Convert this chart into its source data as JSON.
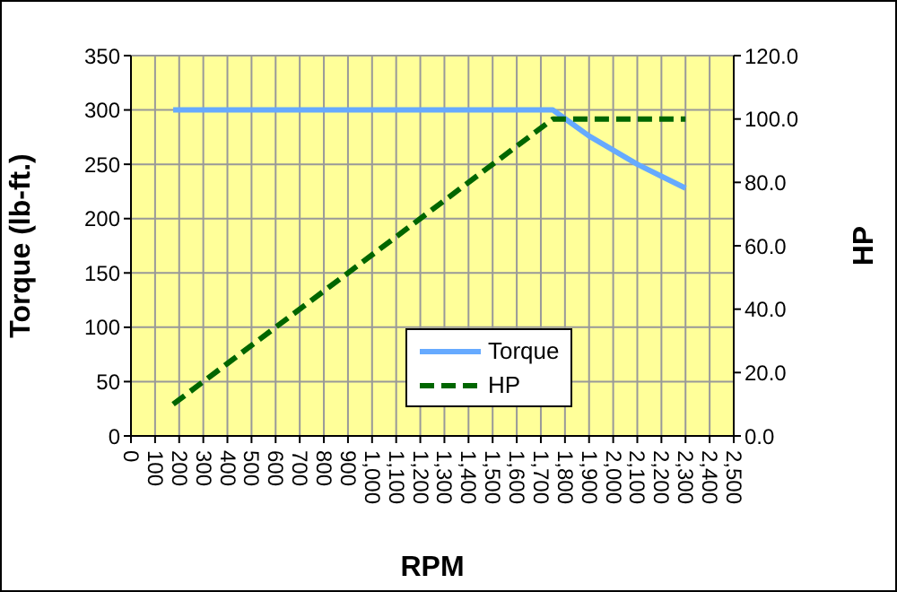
{
  "chart_data": {
    "type": "line",
    "xlabel": "RPM",
    "ylabel": "Torque (lb-ft.)",
    "y2label": "HP",
    "x": [
      175,
      1750,
      1800,
      1900,
      2000,
      2100,
      2200,
      2300
    ],
    "series": [
      {
        "name": "Torque",
        "color": "#66aaff",
        "line_style": "solid",
        "values": [
          300,
          300,
          292,
          276,
          263,
          250,
          239,
          228
        ]
      },
      {
        "name": "HP",
        "color": "#006600",
        "line_style": "dashed",
        "axis": "y2",
        "values": [
          10,
          100,
          100,
          100,
          100,
          100,
          100,
          100
        ]
      }
    ],
    "xlim": [
      0,
      2500
    ],
    "xticks": [
      0,
      100,
      200,
      300,
      400,
      500,
      600,
      700,
      800,
      900,
      {
        "value": 1000,
        "label": "1,000"
      },
      {
        "value": 1100,
        "label": "1,100"
      },
      {
        "value": 1200,
        "label": "1,200"
      },
      {
        "value": 1300,
        "label": "1,300"
      },
      {
        "value": 1400,
        "label": "1,400"
      },
      {
        "value": 1500,
        "label": "1,500"
      },
      {
        "value": 1600,
        "label": "1,600"
      },
      {
        "value": 1700,
        "label": "1,700"
      },
      {
        "value": 1800,
        "label": "1,800"
      },
      {
        "value": 1900,
        "label": "1,900"
      },
      {
        "value": 2000,
        "label": "2,000"
      },
      {
        "value": 2100,
        "label": "2,100"
      },
      {
        "value": 2200,
        "label": "2,200"
      },
      {
        "value": 2300,
        "label": "2,300"
      },
      {
        "value": 2400,
        "label": "2,400"
      },
      {
        "value": 2500,
        "label": "2,500"
      }
    ],
    "ylim": [
      0,
      350
    ],
    "yticks": [
      0,
      50,
      100,
      150,
      200,
      250,
      300,
      350
    ],
    "y2lim": [
      0,
      120
    ],
    "y2ticks": [
      {
        "value": 0,
        "label": "0.0"
      },
      {
        "value": 20,
        "label": "20.0"
      },
      {
        "value": 40,
        "label": "40.0"
      },
      {
        "value": 60,
        "label": "60.0"
      },
      {
        "value": 80,
        "label": "80.0"
      },
      {
        "value": 100,
        "label": "100.0"
      },
      {
        "value": 120,
        "label": "120.0"
      }
    ],
    "grid": true,
    "legend": "bottom",
    "marker": "none"
  }
}
